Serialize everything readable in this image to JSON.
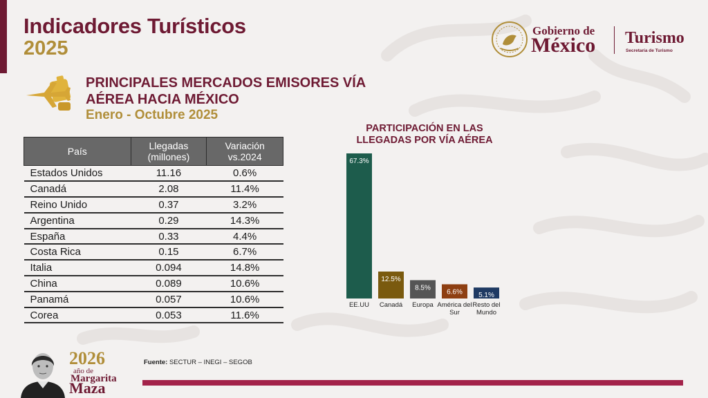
{
  "header": {
    "title": "Indicadores Turísticos",
    "year": "2025"
  },
  "logo": {
    "gov_top": "Gobierno de",
    "gov_main": "México",
    "tur_main": "Turismo",
    "tur_sub": "Secretaría de Turismo"
  },
  "section": {
    "title": "PRINCIPALES MERCADOS EMISORES VÍA AÉREA HACIA MÉXICO",
    "period": "Enero - Octubre 2025",
    "icon": "airplane-luggage-icon"
  },
  "table": {
    "headers": [
      "País",
      "Llegadas (millones)",
      "Variación vs.2024"
    ],
    "rows": [
      [
        "Estados Unidos",
        "11.16",
        "0.6%"
      ],
      [
        "Canadá",
        "2.08",
        "11.4%"
      ],
      [
        "Reino Unido",
        "0.37",
        "3.2%"
      ],
      [
        "Argentina",
        "0.29",
        "14.3%"
      ],
      [
        "España",
        "0.33",
        "4.4%"
      ],
      [
        "Costa Rica",
        "0.15",
        "6.7%"
      ],
      [
        "Italia",
        "0.094",
        "14.8%"
      ],
      [
        "China",
        "0.089",
        "10.6%"
      ],
      [
        "Panamá",
        "0.057",
        "10.6%"
      ],
      [
        "Corea",
        "0.053",
        "11.6%"
      ]
    ]
  },
  "chart_data": {
    "type": "bar",
    "title": "PARTICIPACIÓN EN LAS LLEGADAS POR VÍA AÉREA",
    "categories": [
      "EE.UU",
      "Canadá",
      "Europa",
      "América del Sur",
      "Resto del Mundo"
    ],
    "values": [
      67.3,
      12.5,
      8.5,
      6.6,
      5.1
    ],
    "value_labels": [
      "67.3%",
      "12.5%",
      "8.5%",
      "6.6%",
      "5.1%"
    ],
    "colors": [
      "#1d5c4c",
      "#7a5a0e",
      "#555555",
      "#8e3f12",
      "#1f3a63"
    ],
    "ylim": [
      0,
      67.3
    ],
    "grid": false,
    "legend": "none"
  },
  "footer": {
    "source_label": "Fuente:",
    "source_text": "SECTUR – INEGI – SEGOB",
    "bicentennial_year": "2026",
    "bicentennial_line2": "año de",
    "bicentennial_line3": "Margarita",
    "bicentennial_line4": "Maza"
  },
  "colors": {
    "primary": "#6e1a33",
    "gold": "#b08e39",
    "accent_bar": "#a3234a",
    "table_header": "#686868"
  }
}
